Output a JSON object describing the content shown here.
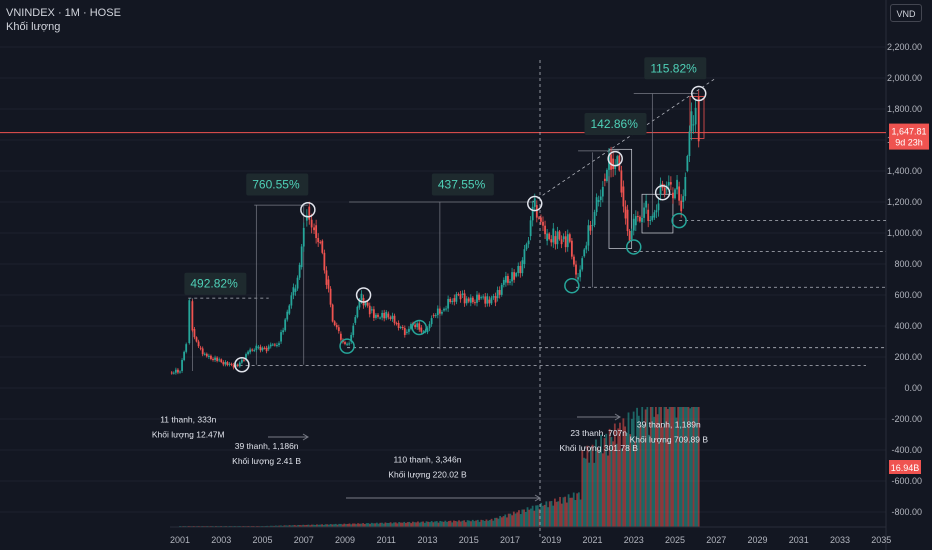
{
  "header": {
    "title": "VNINDEX · 1M · HOSE",
    "volume_label": "Khối lượng",
    "currency": "VND"
  },
  "colors": {
    "up": "#26a69a",
    "down": "#ef5350",
    "background": "#131722",
    "grid": "#1e222d",
    "pct_text": "#4fd1b8",
    "price_line": "#ef5350"
  },
  "price_tag": {
    "value": "1,647.81",
    "countdown": "9d 23h"
  },
  "volume_tag": {
    "value": "16.94B"
  },
  "chart_data": {
    "type": "candlestick",
    "xlabel": "",
    "ylabel": "",
    "x_ticks": [
      "2001",
      "2003",
      "2005",
      "2007",
      "2009",
      "2011",
      "2013",
      "2015",
      "2017",
      "2019",
      "2021",
      "2023",
      "2025",
      "2027",
      "2029",
      "2031",
      "2033",
      "2035"
    ],
    "y_ticks": [
      "2,200.00",
      "2,000.00",
      "1,800.00",
      "1,600.00",
      "1,400.00",
      "1,200.00",
      "1,000.00",
      "800.00",
      "600.00",
      "400.00",
      "200.00",
      "0.00",
      "-200.00",
      "-400.00",
      "-600.00",
      "-800.00"
    ],
    "ylim": [
      -800,
      2200
    ],
    "grid": false,
    "last_price": 1647.81,
    "price_series": [
      [
        2000.5,
        100
      ],
      [
        2001.0,
        110
      ],
      [
        2001.3,
        290
      ],
      [
        2001.45,
        560
      ],
      [
        2001.6,
        380
      ],
      [
        2001.9,
        260
      ],
      [
        2002.3,
        200
      ],
      [
        2002.8,
        180
      ],
      [
        2003.3,
        150
      ],
      [
        2003.8,
        140
      ],
      [
        2004.3,
        230
      ],
      [
        2004.7,
        260
      ],
      [
        2005.2,
        250
      ],
      [
        2005.8,
        300
      ],
      [
        2006.2,
        480
      ],
      [
        2006.5,
        620
      ],
      [
        2006.8,
        780
      ],
      [
        2007.0,
        1080
      ],
      [
        2007.15,
        1170
      ],
      [
        2007.5,
        1050
      ],
      [
        2007.8,
        950
      ],
      [
        2008.1,
        700
      ],
      [
        2008.4,
        430
      ],
      [
        2008.7,
        350
      ],
      [
        2009.0,
        280
      ],
      [
        2009.2,
        300
      ],
      [
        2009.4,
        420
      ],
      [
        2009.6,
        520
      ],
      [
        2009.8,
        580
      ],
      [
        2010.2,
        500
      ],
      [
        2010.6,
        450
      ],
      [
        2011.0,
        480
      ],
      [
        2011.5,
        420
      ],
      [
        2011.9,
        360
      ],
      [
        2012.2,
        420
      ],
      [
        2012.6,
        390
      ],
      [
        2012.9,
        360
      ],
      [
        2013.2,
        470
      ],
      [
        2013.7,
        500
      ],
      [
        2014.2,
        580
      ],
      [
        2014.6,
        600
      ],
      [
        2015.0,
        550
      ],
      [
        2015.5,
        580
      ],
      [
        2015.9,
        570
      ],
      [
        2016.3,
        580
      ],
      [
        2016.7,
        680
      ],
      [
        2017.2,
        720
      ],
      [
        2017.6,
        800
      ],
      [
        2017.9,
        980
      ],
      [
        2018.2,
        1180
      ],
      [
        2018.4,
        1100
      ],
      [
        2018.7,
        950
      ],
      [
        2019.1,
        980
      ],
      [
        2019.5,
        960
      ],
      [
        2019.9,
        950
      ],
      [
        2020.2,
        700
      ],
      [
        2020.5,
        850
      ],
      [
        2020.9,
        1050
      ],
      [
        2021.2,
        1200
      ],
      [
        2021.5,
        1350
      ],
      [
        2021.9,
        1480
      ],
      [
        2022.2,
        1500
      ],
      [
        2022.4,
        1300
      ],
      [
        2022.6,
        1150
      ],
      [
        2022.8,
        960
      ],
      [
        2023.0,
        1050
      ],
      [
        2023.3,
        1070
      ],
      [
        2023.6,
        1150
      ],
      [
        2023.9,
        1100
      ],
      [
        2024.2,
        1250
      ],
      [
        2024.5,
        1280
      ],
      [
        2024.8,
        1260
      ],
      [
        2025.1,
        1300
      ],
      [
        2025.3,
        1200
      ],
      [
        2025.5,
        1400
      ],
      [
        2025.8,
        1700
      ],
      [
        2026.0,
        1880
      ],
      [
        2026.15,
        1647.81
      ]
    ],
    "annotations": [
      {
        "text": "492.82%",
        "x": 2001.6,
        "y": 660
      },
      {
        "text": "760.55%",
        "x": 2004.6,
        "y": 1300
      },
      {
        "text": "437.55%",
        "x": 2013.6,
        "y": 1300
      },
      {
        "text": "142.86%",
        "x": 2021.0,
        "y": 1690
      },
      {
        "text": "115.82%",
        "x": 2023.9,
        "y": 2050
      }
    ],
    "notes": [
      {
        "lines": [
          "11 thanh, 333n",
          "Khối lượng 12.47M"
        ],
        "x": 2001.4,
        "y": -222
      },
      {
        "lines": [
          "39 thanh, 1,186n",
          "Khối lượng 2.41 B"
        ],
        "x": 2005.2,
        "y": -395
      },
      {
        "lines": [
          "110 thanh, 3,346n",
          "Khối lượng 220.02 B"
        ],
        "x": 2013.0,
        "y": -480
      },
      {
        "lines": [
          "23 thanh, 707n",
          "Khối lượng 301.78 B"
        ],
        "x": 2021.3,
        "y": -310
      },
      {
        "lines": [
          "39 thanh, 1,189n",
          "Khối lượng 709.89 B"
        ],
        "x": 2024.7,
        "y": -255
      }
    ]
  }
}
